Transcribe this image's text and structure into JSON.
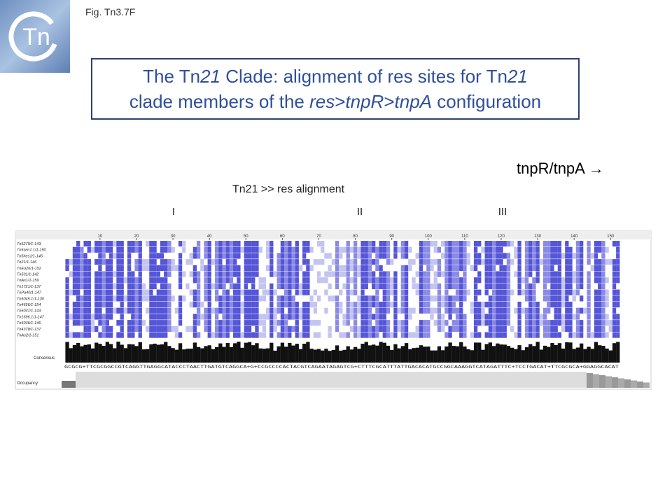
{
  "figure_label": "Fig. Tn3.7F",
  "logo": "Tn",
  "title": {
    "lines": [
      [
        {
          "text": "The Tn",
          "italic": false
        },
        {
          "text": "21",
          "italic": true
        },
        {
          "text": " Clade: alignment of res sites for Tn",
          "italic": false
        },
        {
          "text": "21",
          "italic": true
        }
      ],
      [
        {
          "text": "clade members of the ",
          "italic": false
        },
        {
          "text": "res",
          "italic": true
        },
        {
          "text": ">",
          "italic": false
        },
        {
          "text": "tnpR",
          "italic": true
        },
        {
          "text": ">",
          "italic": false
        },
        {
          "text": "tnpA",
          "italic": true
        },
        {
          "text": " configuration",
          "italic": false
        }
      ]
    ]
  },
  "gene_label": "tnpR/tnpA →",
  "alignment_label": "Tn21 >> res alignment",
  "site_labels": [
    "I",
    "II",
    "III"
  ],
  "alignment": {
    "ruler": [
      10,
      20,
      30,
      40,
      50,
      60,
      70,
      80,
      90,
      100,
      110,
      120,
      130,
      140,
      150
    ],
    "sequences": [
      "Tn5270/1-143",
      "Tn5sen1.1/1-150",
      "Tn5hes1/1-146",
      "Tn21/1-146",
      "TnEo26/1-152",
      "Tn501/1-142",
      "TnAs1/1-159",
      "Tn1721/1-137",
      "TnPa40/1-147",
      "Tn5045.1/1-130",
      "Tn4656/1-154",
      "Tn5037/1-143",
      "Tn1696.1/1-147",
      "Tn5036/1-146",
      "Tn4378/1-137",
      "TnAs2/1-151"
    ],
    "consensus_label": "Consensus",
    "consensus_sequence": "GCGCG+TTCGCGGCCGTCAGGTTGAGGCATACCCTAACTTGATGTCAGGCA+G+CCGCCCCACTACGTCAGAATAGAGTCG+CTTTCGCATTTATTGACACATGCCGGCAAAGGTCATAGATTTC+TCCTGACAT+TTCGCGCA+GGAGGCACAT",
    "occupancy_label": "Occupancy"
  }
}
